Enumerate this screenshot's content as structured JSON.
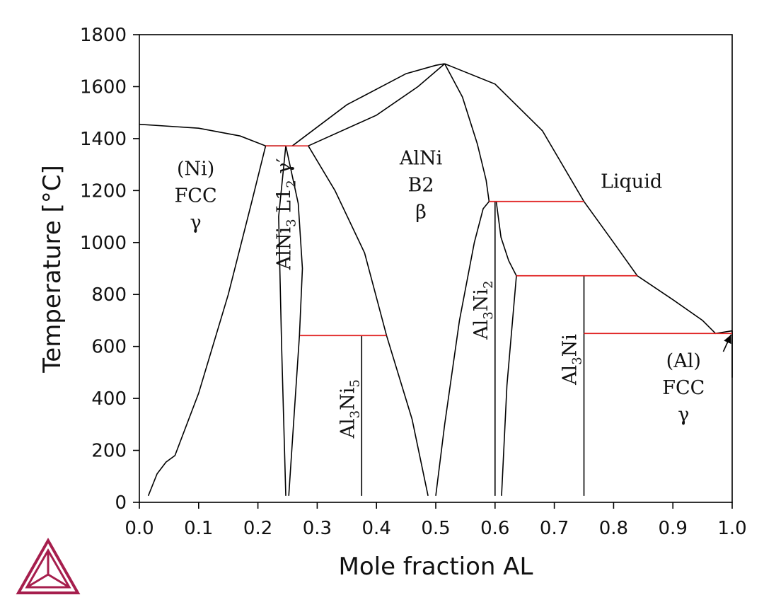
{
  "chart_data": {
    "type": "line",
    "title": "",
    "xlabel": "Mole fraction AL",
    "ylabel": "Temperature [°C]",
    "xlim": [
      0,
      1
    ],
    "ylim": [
      0,
      1800
    ],
    "xticks": [
      "0.0",
      "0.1",
      "0.2",
      "0.3",
      "0.4",
      "0.5",
      "0.6",
      "0.7",
      "0.8",
      "0.9",
      "1.0"
    ],
    "yticks": [
      "0",
      "200",
      "400",
      "600",
      "800",
      "1000",
      "1200",
      "1400",
      "1600",
      "1800"
    ],
    "grid": false,
    "colors": {
      "boundary": "#000000",
      "invariant": "#e02020",
      "logo": "#a61e4d"
    },
    "boundaries": [
      {
        "points": [
          [
            0,
            1455
          ],
          [
            0.1,
            1440
          ],
          [
            0.17,
            1410
          ],
          [
            0.213,
            1372
          ],
          [
            0.247,
            1372
          ]
        ]
      },
      {
        "points": [
          [
            0.015,
            25
          ],
          [
            0.03,
            110
          ],
          [
            0.045,
            155
          ],
          [
            0.06,
            180
          ],
          [
            0.1,
            420
          ],
          [
            0.15,
            800
          ],
          [
            0.19,
            1160
          ],
          [
            0.213,
            1372
          ]
        ]
      },
      {
        "points": [
          [
            0.258,
            1372
          ],
          [
            0.35,
            1530
          ],
          [
            0.45,
            1650
          ],
          [
            0.5,
            1682
          ],
          [
            0.515,
            1688
          ]
        ]
      },
      {
        "points": [
          [
            0.285,
            1372
          ],
          [
            0.4,
            1490
          ],
          [
            0.47,
            1600
          ],
          [
            0.515,
            1688
          ]
        ]
      },
      {
        "points": [
          [
            0.285,
            1372
          ],
          [
            0.33,
            1200
          ],
          [
            0.38,
            960
          ],
          [
            0.417,
            642
          ],
          [
            0.46,
            320
          ],
          [
            0.487,
            25
          ]
        ]
      },
      {
        "points": [
          [
            0.515,
            1688
          ],
          [
            0.6,
            1610
          ],
          [
            0.68,
            1430
          ],
          [
            0.75,
            1158
          ],
          [
            0.8,
            1000
          ],
          [
            0.84,
            872
          ],
          [
            0.9,
            780
          ],
          [
            0.95,
            700
          ],
          [
            0.972,
            650
          ],
          [
            1.0,
            660
          ]
        ]
      },
      {
        "points": [
          [
            0.515,
            1688
          ],
          [
            0.545,
            1560
          ],
          [
            0.57,
            1380
          ],
          [
            0.585,
            1240
          ],
          [
            0.59,
            1158
          ]
        ]
      },
      {
        "points": [
          [
            0.5,
            25
          ],
          [
            0.515,
            300
          ],
          [
            0.54,
            700
          ],
          [
            0.565,
            1000
          ],
          [
            0.58,
            1130
          ],
          [
            0.59,
            1158
          ]
        ]
      },
      {
        "points": [
          [
            0.602,
            1158
          ],
          [
            0.61,
            1020
          ],
          [
            0.623,
            930
          ],
          [
            0.636,
            872
          ]
        ]
      },
      {
        "points": [
          [
            0.611,
            25
          ],
          [
            0.62,
            450
          ],
          [
            0.636,
            872
          ]
        ]
      },
      {
        "points": [
          [
            0.247,
            1372
          ],
          [
            0.235,
            1100
          ],
          [
            0.24,
            600
          ],
          [
            0.247,
            25
          ]
        ]
      },
      {
        "points": [
          [
            0.247,
            1372
          ],
          [
            0.268,
            1150
          ],
          [
            0.275,
            900
          ],
          [
            0.27,
            642
          ],
          [
            0.26,
            300
          ],
          [
            0.252,
            25
          ]
        ]
      },
      {
        "points": [
          [
            1.0,
            660
          ],
          [
            1.0,
            480
          ]
        ]
      }
    ],
    "invariant_lines": [
      {
        "x": [
          0.213,
          0.285
        ],
        "y": 1372
      },
      {
        "x": [
          0.271,
          0.417
        ],
        "y": 642
      },
      {
        "x": [
          0.59,
          0.75
        ],
        "y": 1158
      },
      {
        "x": [
          0.636,
          0.84
        ],
        "y": 872
      },
      {
        "x": [
          0.75,
          1.0
        ],
        "y": 650
      }
    ],
    "compound_lines": [
      {
        "x": 0.375,
        "y": [
          25,
          642
        ]
      },
      {
        "x": 0.6,
        "y": [
          25,
          1158
        ]
      },
      {
        "x": 0.75,
        "y": [
          25,
          872
        ]
      }
    ],
    "phase_labels": [
      {
        "lines": [
          "(Ni)",
          "FCC",
          "γ"
        ],
        "x": 0.095,
        "y": 1260
      },
      {
        "lines": [
          "AlNi",
          "B2",
          "β"
        ],
        "x": 0.475,
        "y": 1300
      },
      {
        "lines": [
          "Liquid"
        ],
        "x": 0.83,
        "y": 1210
      },
      {
        "lines": [
          "(Al)",
          "FCC",
          "γ"
        ],
        "x": 0.918,
        "y": 520
      }
    ],
    "compound_labels": [
      {
        "base": "AlNi",
        "sub": "3",
        "tail": " L1",
        "sub2": "2",
        "end": " γ′",
        "x": 0.255,
        "y": 1110
      },
      {
        "base": "Al",
        "sub": "3",
        "mid": "Ni",
        "sub2": "5",
        "x": 0.362,
        "y": 360
      },
      {
        "base": "Al",
        "sub": "3",
        "mid": "Ni",
        "sub2": "2",
        "x": 0.587,
        "y": 740
      },
      {
        "base": "Al",
        "sub": "3",
        "mid": "Ni",
        "x": 0.737,
        "y": 550
      }
    ],
    "arrow": {
      "from": [
        0.985,
        580
      ],
      "to": [
        0.998,
        645
      ]
    }
  }
}
